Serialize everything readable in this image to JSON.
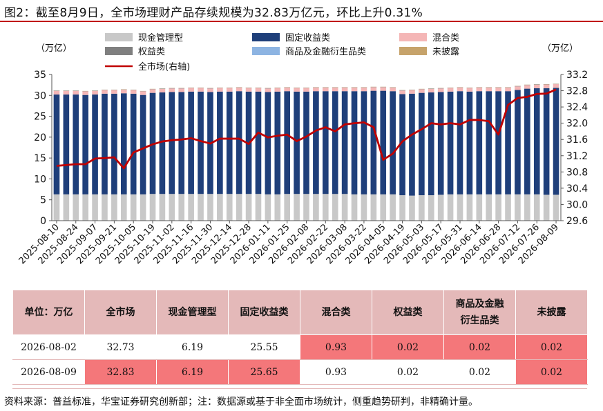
{
  "figure": {
    "title": "图2：截至8月9日，全市场理财产品存续规模为32.83万亿元，环比上升0.31%",
    "source": "资料来源：普益标准，华宝证券研究创新部；注：数据源或基于非全面市场统计，侧重趋势研判，非精确计量。"
  },
  "colors": {
    "cash": "#c8c8c8",
    "fixed_income": "#1f3f7a",
    "mixed": "#f4b6b6",
    "equity": "#7f7f7f",
    "commodity": "#8db4e2",
    "undisclosed": "#c6a36b",
    "total_line": "#c00000",
    "accent_rule": "#c00000",
    "table_header": "#e4b9b9",
    "table_highlight": "#f4777a"
  },
  "chart_data": {
    "type": "bar",
    "stacked": true,
    "left_axis_unit": "（万亿）",
    "right_axis_unit": "（万亿）",
    "ylim_left": [
      0,
      35
    ],
    "ylim_right": [
      29.6,
      33.2
    ],
    "yticks_left": [
      0,
      5,
      10,
      15,
      20,
      25,
      30,
      35
    ],
    "yticks_right": [
      "29.6",
      "30.0",
      "30.4",
      "30.8",
      "31.2",
      "31.6",
      "32.0",
      "32.4",
      "32.8",
      "33.2"
    ],
    "x_tick_labels": [
      "2025-08-10",
      "2025-08-24",
      "2025-09-07",
      "2025-09-21",
      "2025-10-05",
      "2025-10-19",
      "2025-11-02",
      "2025-11-16",
      "2025-11-30",
      "2025-12-14",
      "2025-12-28",
      "2026-01-11",
      "2026-01-25",
      "2026-02-08",
      "2026-02-22",
      "2026-03-08",
      "2026-03-22",
      "2026-04-05",
      "2026-04-19",
      "2026-05-03",
      "2026-05-17",
      "2026-05-31",
      "2026-06-14",
      "2026-06-28",
      "2026-07-12",
      "2026-07-26",
      "2026-08-09"
    ],
    "legend": [
      {
        "name": "现金管理型",
        "color_key": "cash",
        "kind": "bar"
      },
      {
        "name": "固定收益类",
        "color_key": "fixed_income",
        "kind": "bar"
      },
      {
        "name": "混合类",
        "color_key": "mixed",
        "kind": "bar"
      },
      {
        "name": "权益类",
        "color_key": "equity",
        "kind": "bar"
      },
      {
        "name": "商品及金融衍生品类",
        "color_key": "commodity",
        "kind": "bar"
      },
      {
        "name": "未披露",
        "color_key": "undisclosed",
        "kind": "bar"
      },
      {
        "name": "全市场(右轴)",
        "color_key": "total_line",
        "kind": "line"
      }
    ],
    "weeks": 53,
    "series": [
      {
        "name": "现金管理型",
        "axis": "left",
        "values": [
          6.3,
          6.3,
          6.3,
          6.3,
          6.3,
          6.3,
          6.3,
          6.3,
          6.3,
          6.3,
          6.4,
          6.4,
          6.4,
          6.4,
          6.4,
          6.4,
          6.4,
          6.4,
          6.4,
          6.4,
          6.4,
          6.4,
          6.3,
          6.3,
          6.4,
          6.4,
          6.4,
          6.4,
          6.4,
          6.4,
          6.4,
          6.3,
          6.3,
          6.3,
          6.3,
          6.3,
          6.1,
          6.0,
          6.1,
          6.1,
          6.2,
          6.3,
          6.3,
          6.3,
          6.3,
          6.3,
          6.3,
          6.3,
          6.3,
          6.3,
          6.3,
          6.2,
          6.2
        ]
      },
      {
        "name": "固定收益类",
        "axis": "left",
        "values": [
          23.9,
          23.9,
          23.9,
          23.8,
          23.9,
          24.1,
          24.1,
          24.2,
          24.1,
          23.8,
          24.2,
          24.3,
          24.4,
          24.4,
          24.5,
          24.5,
          24.4,
          24.5,
          24.5,
          24.6,
          24.5,
          24.5,
          24.5,
          24.6,
          24.6,
          24.5,
          24.5,
          24.6,
          24.6,
          24.6,
          24.6,
          24.7,
          24.7,
          24.8,
          24.8,
          24.7,
          24.2,
          24.4,
          24.5,
          24.6,
          24.6,
          24.6,
          24.7,
          24.6,
          24.7,
          24.7,
          24.7,
          24.7,
          25.0,
          25.3,
          25.4,
          25.5,
          25.6
        ]
      },
      {
        "name": "混合类",
        "axis": "left",
        "values": [
          0.9,
          0.9,
          0.9,
          0.9,
          0.9,
          0.9,
          0.9,
          0.9,
          0.9,
          0.9,
          0.9,
          0.9,
          0.9,
          0.9,
          0.9,
          0.9,
          0.9,
          0.9,
          0.9,
          0.9,
          0.9,
          0.9,
          0.9,
          0.9,
          0.9,
          0.9,
          0.9,
          0.9,
          0.9,
          0.9,
          0.9,
          0.9,
          0.9,
          0.9,
          0.9,
          0.9,
          0.9,
          0.9,
          0.9,
          0.9,
          0.9,
          0.9,
          0.9,
          0.9,
          0.9,
          0.9,
          0.9,
          0.9,
          0.9,
          0.9,
          0.9,
          0.93,
          0.93
        ]
      },
      {
        "name": "权益类",
        "axis": "left",
        "values": [
          0.02,
          0.02,
          0.02,
          0.02,
          0.02,
          0.02,
          0.02,
          0.02,
          0.02,
          0.02,
          0.02,
          0.02,
          0.02,
          0.02,
          0.02,
          0.02,
          0.02,
          0.02,
          0.02,
          0.02,
          0.02,
          0.02,
          0.02,
          0.02,
          0.02,
          0.02,
          0.02,
          0.02,
          0.02,
          0.02,
          0.02,
          0.02,
          0.02,
          0.02,
          0.02,
          0.02,
          0.02,
          0.02,
          0.02,
          0.02,
          0.02,
          0.02,
          0.02,
          0.02,
          0.02,
          0.02,
          0.02,
          0.02,
          0.02,
          0.02,
          0.02,
          0.02,
          0.02
        ]
      },
      {
        "name": "商品及金融衍生品类",
        "axis": "left",
        "values": [
          0.02,
          0.02,
          0.02,
          0.02,
          0.02,
          0.02,
          0.02,
          0.02,
          0.02,
          0.02,
          0.02,
          0.02,
          0.02,
          0.02,
          0.02,
          0.02,
          0.02,
          0.02,
          0.02,
          0.02,
          0.02,
          0.02,
          0.02,
          0.02,
          0.02,
          0.02,
          0.02,
          0.02,
          0.02,
          0.02,
          0.02,
          0.02,
          0.02,
          0.02,
          0.02,
          0.02,
          0.02,
          0.02,
          0.02,
          0.02,
          0.02,
          0.02,
          0.02,
          0.02,
          0.02,
          0.02,
          0.02,
          0.02,
          0.02,
          0.02,
          0.02,
          0.02,
          0.02
        ]
      },
      {
        "name": "未披露",
        "axis": "left",
        "values": [
          0.02,
          0.02,
          0.02,
          0.02,
          0.02,
          0.02,
          0.02,
          0.02,
          0.02,
          0.02,
          0.02,
          0.02,
          0.02,
          0.02,
          0.02,
          0.02,
          0.02,
          0.02,
          0.02,
          0.02,
          0.02,
          0.02,
          0.02,
          0.02,
          0.02,
          0.02,
          0.02,
          0.02,
          0.02,
          0.02,
          0.02,
          0.02,
          0.02,
          0.02,
          0.02,
          0.02,
          0.02,
          0.02,
          0.02,
          0.02,
          0.02,
          0.02,
          0.02,
          0.02,
          0.02,
          0.02,
          0.02,
          0.02,
          0.02,
          0.02,
          0.02,
          0.02,
          0.02
        ]
      },
      {
        "name": "全市场(右轴)",
        "axis": "right",
        "type": "line",
        "values": [
          30.95,
          30.97,
          30.99,
          30.99,
          31.13,
          31.14,
          31.16,
          30.89,
          31.28,
          31.38,
          31.48,
          31.55,
          31.58,
          31.6,
          31.63,
          31.56,
          31.5,
          31.62,
          31.62,
          31.62,
          31.49,
          31.77,
          31.65,
          31.69,
          31.72,
          31.56,
          31.67,
          31.82,
          31.9,
          31.8,
          31.97,
          32.0,
          32.02,
          31.9,
          31.1,
          31.25,
          31.55,
          31.72,
          31.85,
          32.0,
          31.97,
          32.0,
          31.97,
          32.08,
          32.08,
          32.05,
          31.72,
          32.45,
          32.62,
          32.65,
          32.72,
          32.73,
          32.83
        ]
      }
    ]
  },
  "table": {
    "headers": [
      "单位：万亿",
      "全市场",
      "现金管理型",
      "固定收益类",
      "混合类",
      "权益类",
      "商品及金融衍生品类",
      "未披露"
    ],
    "header_lines": {
      "commodity_line1": "商品及金融",
      "commodity_line2": "衍生品类"
    },
    "rows": [
      {
        "date": "2026-08-02",
        "values": [
          "32.73",
          "6.19",
          "25.55",
          "0.93",
          "0.02",
          "0.02",
          "0.02"
        ]
      },
      {
        "date": "2026-08-09",
        "values": [
          "32.83",
          "6.19",
          "25.65",
          "0.93",
          "0.02",
          "0.02",
          "0.02"
        ]
      }
    ]
  }
}
